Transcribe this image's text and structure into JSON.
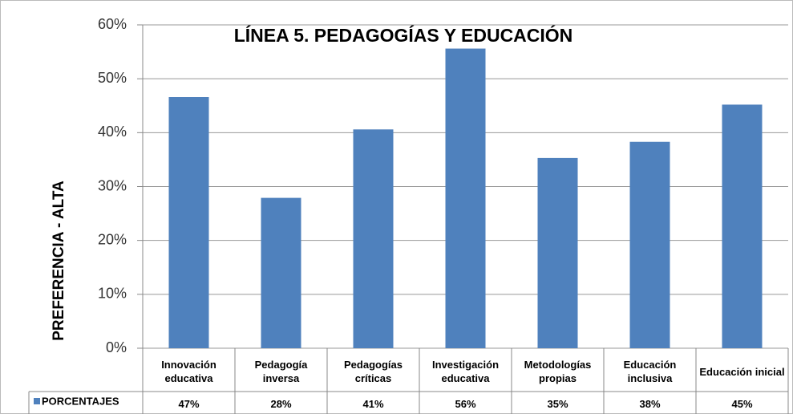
{
  "chart_data": {
    "type": "bar",
    "title": "LÍNEA 5. PEDAGOGÍAS Y EDUCACIÓN",
    "y_label": "PREFERENCIA - ALTA",
    "categories": [
      "Innovación educativa",
      "Pedagogía inversa",
      "Pedagogías críticas",
      "Investigación educativa",
      "Metodologías propias",
      "Educación inclusiva",
      "Educación inicial"
    ],
    "series": [
      {
        "name": "PORCENTAJES",
        "color": "#4f81bd",
        "values": [
          46.6,
          27.9,
          40.6,
          55.6,
          35.3,
          38.3,
          45.2
        ],
        "value_labels": [
          "47%",
          "28%",
          "41%",
          "56%",
          "35%",
          "38%",
          "45%"
        ]
      }
    ],
    "ylim": [
      0,
      60
    ],
    "yticks": [
      {
        "value": 0,
        "label": "0%"
      },
      {
        "value": 10,
        "label": "10%"
      },
      {
        "value": 20,
        "label": "20%"
      },
      {
        "value": 30,
        "label": "30%"
      },
      {
        "value": 40,
        "label": "40%"
      },
      {
        "value": 50,
        "label": "50%"
      },
      {
        "value": 60,
        "label": "60%"
      }
    ],
    "grid": true
  }
}
